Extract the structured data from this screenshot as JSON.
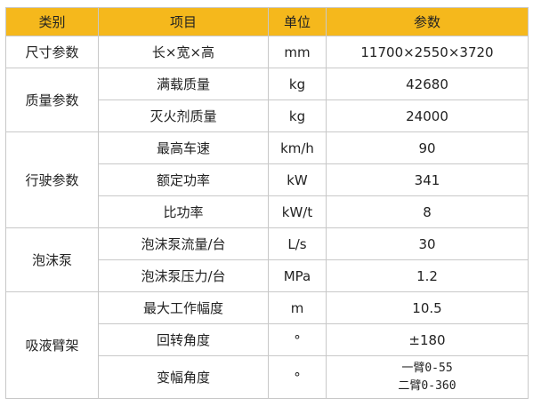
{
  "header": {
    "category": "类别",
    "item": "项目",
    "unit": "单位",
    "param": "参数"
  },
  "groups": [
    {
      "category": "尺寸参数",
      "rows": [
        {
          "item": "长×宽×高",
          "unit": "mm",
          "value": "11700×2550×3720"
        }
      ]
    },
    {
      "category": "质量参数",
      "rows": [
        {
          "item": "满载质量",
          "unit": "kg",
          "value": "42680"
        },
        {
          "item": "灭火剂质量",
          "unit": "kg",
          "value": "24000"
        }
      ]
    },
    {
      "category": "行驶参数",
      "rows": [
        {
          "item": "最高车速",
          "unit": "km/h",
          "value": "90"
        },
        {
          "item": "额定功率",
          "unit": "kW",
          "value": "341"
        },
        {
          "item": "比功率",
          "unit": "kW/t",
          "value": "8"
        }
      ]
    },
    {
      "category": "泡沫泵",
      "rows": [
        {
          "item": "泡沫泵流量/台",
          "unit": "L/s",
          "value": "30"
        },
        {
          "item": "泡沫泵压力/台",
          "unit": "MPa",
          "value": "1.2"
        }
      ]
    },
    {
      "category": "吸液臂架",
      "rows": [
        {
          "item": "最大工作幅度",
          "unit": "m",
          "value": "10.5"
        },
        {
          "item": "回转角度",
          "unit": "°",
          "value": "±180"
        },
        {
          "item": "变幅角度",
          "unit": "°",
          "value_line1": "一臂0-55",
          "value_line2": "二臂0-360"
        }
      ]
    }
  ]
}
